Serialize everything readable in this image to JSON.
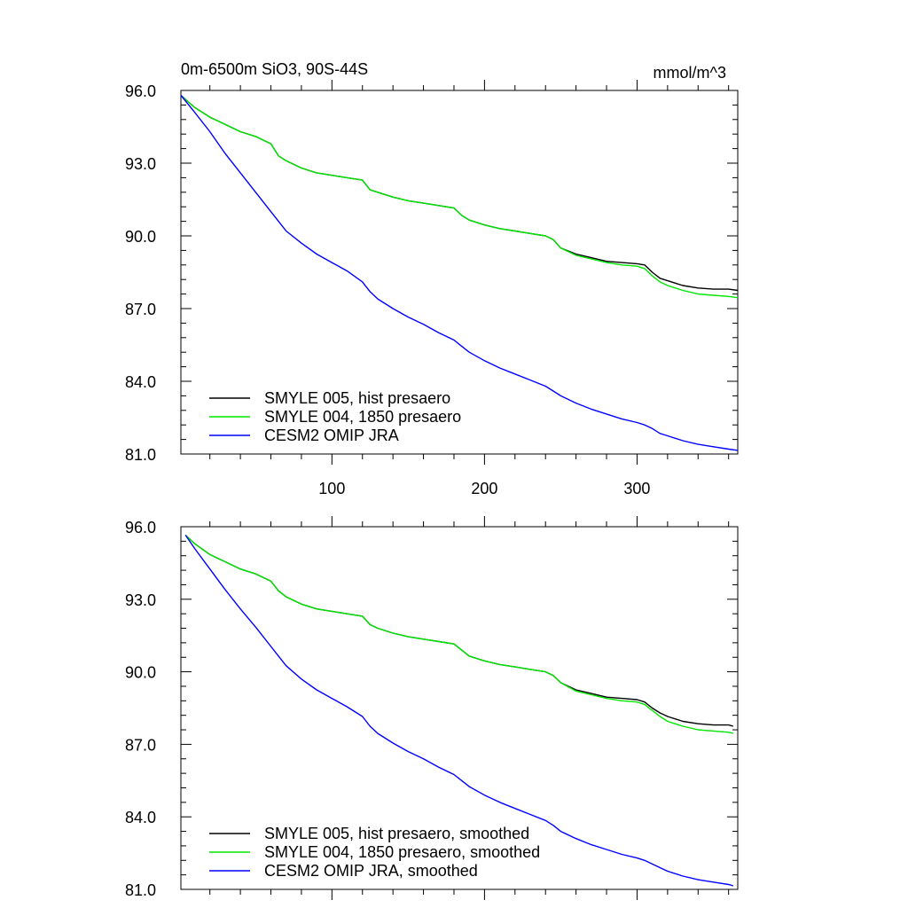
{
  "figure": {
    "title_left": "0m-6500m SiO3, 90S-44S",
    "title_right": "mmol/m^3"
  },
  "chart_data": [
    {
      "type": "line",
      "title": "0m-6500m SiO3, 90S-44S",
      "units": "mmol/m^3",
      "xlim": [
        1,
        366
      ],
      "ylim": [
        81.0,
        96.0
      ],
      "xticks": [
        100,
        200,
        300
      ],
      "xtick_labels": [
        "100",
        "200",
        "300"
      ],
      "yticks": [
        81.0,
        84.0,
        87.0,
        90.0,
        93.0,
        96.0
      ],
      "ytick_labels": [
        "81.0",
        "84.0",
        "87.0",
        "90.0",
        "93.0",
        "96.0"
      ],
      "legend": "bottom-left",
      "series": [
        {
          "name": "SMYLE 005, hist presaero",
          "color": "#000000",
          "x": [
            1,
            10,
            20,
            30,
            40,
            50,
            60,
            65,
            70,
            80,
            90,
            100,
            110,
            120,
            125,
            130,
            140,
            150,
            160,
            170,
            180,
            185,
            190,
            200,
            210,
            220,
            230,
            240,
            245,
            250,
            260,
            270,
            280,
            290,
            300,
            305,
            310,
            315,
            320,
            330,
            340,
            350,
            360,
            366
          ],
          "y": [
            95.8,
            95.3,
            94.9,
            94.6,
            94.3,
            94.1,
            93.8,
            93.3,
            93.1,
            92.8,
            92.6,
            92.5,
            92.4,
            92.3,
            91.9,
            91.8,
            91.6,
            91.45,
            91.35,
            91.25,
            91.15,
            90.85,
            90.65,
            90.45,
            90.3,
            90.2,
            90.1,
            90.0,
            89.85,
            89.5,
            89.25,
            89.1,
            88.95,
            88.9,
            88.85,
            88.8,
            88.5,
            88.25,
            88.15,
            87.95,
            87.85,
            87.8,
            87.8,
            87.75
          ]
        },
        {
          "name": "SMYLE 004, 1850 presaero",
          "color": "#00e600",
          "x": [
            1,
            10,
            20,
            30,
            40,
            50,
            60,
            65,
            70,
            80,
            90,
            100,
            110,
            120,
            125,
            130,
            140,
            150,
            160,
            170,
            180,
            185,
            190,
            200,
            210,
            220,
            230,
            240,
            245,
            250,
            260,
            270,
            280,
            290,
            300,
            305,
            310,
            315,
            320,
            330,
            340,
            350,
            360,
            366
          ],
          "y": [
            95.8,
            95.3,
            94.9,
            94.6,
            94.3,
            94.1,
            93.8,
            93.3,
            93.1,
            92.8,
            92.6,
            92.5,
            92.4,
            92.3,
            91.9,
            91.8,
            91.6,
            91.45,
            91.35,
            91.25,
            91.15,
            90.85,
            90.65,
            90.45,
            90.3,
            90.2,
            90.1,
            90.0,
            89.85,
            89.5,
            89.2,
            89.05,
            88.9,
            88.8,
            88.75,
            88.65,
            88.35,
            88.1,
            87.95,
            87.75,
            87.6,
            87.55,
            87.5,
            87.45
          ]
        },
        {
          "name": "CESM2 OMIP JRA",
          "color": "#0000ff",
          "x": [
            1,
            10,
            20,
            30,
            40,
            50,
            60,
            65,
            70,
            80,
            90,
            100,
            110,
            120,
            125,
            130,
            140,
            150,
            160,
            170,
            180,
            185,
            190,
            200,
            210,
            220,
            230,
            240,
            245,
            250,
            260,
            270,
            280,
            290,
            300,
            305,
            310,
            315,
            320,
            330,
            340,
            350,
            360,
            366
          ],
          "y": [
            95.8,
            95.1,
            94.3,
            93.4,
            92.6,
            91.8,
            91.0,
            90.6,
            90.2,
            89.7,
            89.25,
            88.9,
            88.55,
            88.1,
            87.7,
            87.4,
            87.0,
            86.65,
            86.35,
            86.0,
            85.7,
            85.45,
            85.2,
            84.85,
            84.55,
            84.3,
            84.05,
            83.8,
            83.6,
            83.4,
            83.1,
            82.85,
            82.65,
            82.45,
            82.3,
            82.2,
            82.05,
            81.85,
            81.75,
            81.55,
            81.4,
            81.3,
            81.2,
            81.15
          ]
        }
      ]
    },
    {
      "type": "line",
      "xlim": [
        1,
        366
      ],
      "ylim": [
        81.0,
        96.0
      ],
      "xticks": [
        100,
        200,
        300
      ],
      "xtick_labels": [],
      "yticks": [
        81.0,
        84.0,
        87.0,
        90.0,
        93.0,
        96.0
      ],
      "ytick_labels": [
        "81.0",
        "84.0",
        "87.0",
        "90.0",
        "93.0",
        "96.0"
      ],
      "legend": "bottom-left",
      "series": [
        {
          "name": "SMYLE 005, hist presaero, smoothed",
          "color": "#000000",
          "x": [
            4,
            10,
            20,
            30,
            40,
            50,
            60,
            65,
            70,
            80,
            90,
            100,
            110,
            120,
            125,
            130,
            140,
            150,
            160,
            170,
            180,
            185,
            190,
            200,
            210,
            220,
            230,
            240,
            245,
            250,
            260,
            270,
            280,
            290,
            300,
            305,
            310,
            315,
            320,
            330,
            340,
            350,
            360,
            363
          ],
          "y": [
            95.65,
            95.3,
            94.85,
            94.55,
            94.25,
            94.05,
            93.75,
            93.35,
            93.1,
            92.8,
            92.6,
            92.5,
            92.4,
            92.3,
            91.95,
            91.8,
            91.6,
            91.45,
            91.35,
            91.25,
            91.15,
            90.9,
            90.65,
            90.45,
            90.3,
            90.2,
            90.1,
            90.0,
            89.85,
            89.55,
            89.25,
            89.1,
            88.95,
            88.9,
            88.85,
            88.75,
            88.5,
            88.3,
            88.15,
            87.95,
            87.85,
            87.8,
            87.8,
            87.75
          ]
        },
        {
          "name": "SMYLE 004, 1850 presaero, smoothed",
          "color": "#00e600",
          "x": [
            4,
            10,
            20,
            30,
            40,
            50,
            60,
            65,
            70,
            80,
            90,
            100,
            110,
            120,
            125,
            130,
            140,
            150,
            160,
            170,
            180,
            185,
            190,
            200,
            210,
            220,
            230,
            240,
            245,
            250,
            260,
            270,
            280,
            290,
            300,
            305,
            310,
            315,
            320,
            330,
            340,
            350,
            360,
            363
          ],
          "y": [
            95.65,
            95.3,
            94.85,
            94.55,
            94.25,
            94.05,
            93.75,
            93.35,
            93.1,
            92.8,
            92.6,
            92.5,
            92.4,
            92.3,
            91.95,
            91.8,
            91.6,
            91.45,
            91.35,
            91.25,
            91.15,
            90.9,
            90.65,
            90.45,
            90.3,
            90.2,
            90.1,
            90.0,
            89.85,
            89.55,
            89.2,
            89.05,
            88.9,
            88.8,
            88.75,
            88.65,
            88.4,
            88.15,
            87.95,
            87.75,
            87.6,
            87.55,
            87.5,
            87.45
          ]
        },
        {
          "name": "CESM2 OMIP JRA, smoothed",
          "color": "#0000ff",
          "x": [
            4,
            10,
            20,
            30,
            40,
            50,
            60,
            65,
            70,
            80,
            90,
            100,
            110,
            120,
            125,
            130,
            140,
            150,
            160,
            170,
            180,
            185,
            190,
            200,
            210,
            220,
            230,
            240,
            245,
            250,
            260,
            270,
            280,
            290,
            300,
            305,
            310,
            315,
            320,
            330,
            340,
            350,
            360,
            363
          ],
          "y": [
            95.65,
            95.1,
            94.25,
            93.4,
            92.6,
            91.85,
            91.05,
            90.65,
            90.25,
            89.7,
            89.25,
            88.9,
            88.55,
            88.15,
            87.75,
            87.45,
            87.05,
            86.7,
            86.4,
            86.05,
            85.75,
            85.5,
            85.25,
            84.9,
            84.6,
            84.35,
            84.1,
            83.85,
            83.65,
            83.4,
            83.1,
            82.85,
            82.65,
            82.45,
            82.3,
            82.2,
            82.05,
            81.9,
            81.75,
            81.55,
            81.4,
            81.3,
            81.2,
            81.15
          ]
        }
      ]
    }
  ]
}
